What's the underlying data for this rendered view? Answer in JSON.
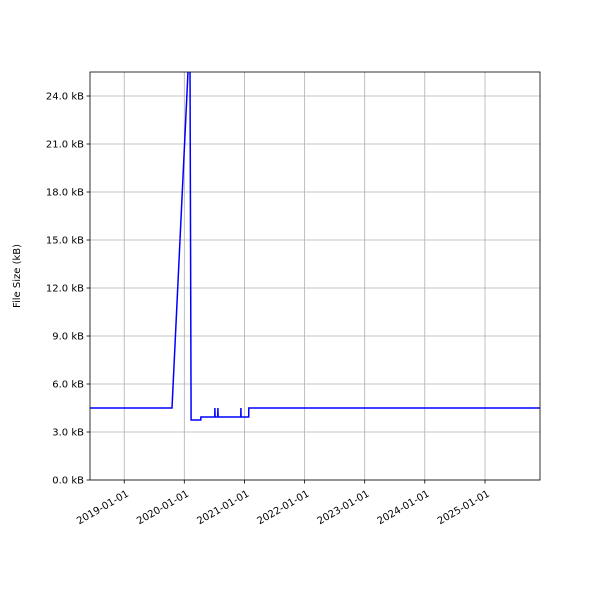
{
  "chart_data": {
    "type": "line",
    "title": "",
    "xlabel": "",
    "ylabel": "File Size (kB)",
    "xlim": [
      "2018-06-07",
      "2025-12-01"
    ],
    "ylim": [
      0,
      25.5
    ],
    "grid": true,
    "x_ticks": [
      "2019-01-01",
      "2020-01-01",
      "2021-01-01",
      "2022-01-01",
      "2023-01-01",
      "2024-01-01",
      "2025-01-01"
    ],
    "y_ticks": [
      0,
      3,
      6,
      9,
      12,
      15,
      18,
      21,
      24
    ],
    "y_tick_labels": [
      "0.0 kB",
      "3.0 kB",
      "6.0 kB",
      "9.0 kB",
      "12.0 kB",
      "15.0 kB",
      "18.0 kB",
      "21.0 kB",
      "24.0 kB"
    ],
    "line_color": "#0000ff",
    "series": [
      {
        "x": [
          "2018-06-07",
          "2019-10-18",
          "2020-02-04",
          "2020-02-11",
          "2020-04-10",
          "2020-04-11",
          "2020-07-04",
          "2020-07-05",
          "2020-07-06",
          "2020-07-22",
          "2020-07-23",
          "2020-07-24",
          "2020-12-09",
          "2020-12-10",
          "2020-12-11",
          "2021-01-26",
          "2021-01-27",
          "2025-12-01"
        ],
        "y": [
          4.5,
          4.5,
          28.0,
          3.75,
          3.75,
          3.94,
          3.94,
          4.5,
          3.94,
          3.94,
          4.5,
          3.94,
          3.94,
          4.5,
          3.94,
          3.94,
          4.5,
          4.5
        ]
      }
    ]
  }
}
